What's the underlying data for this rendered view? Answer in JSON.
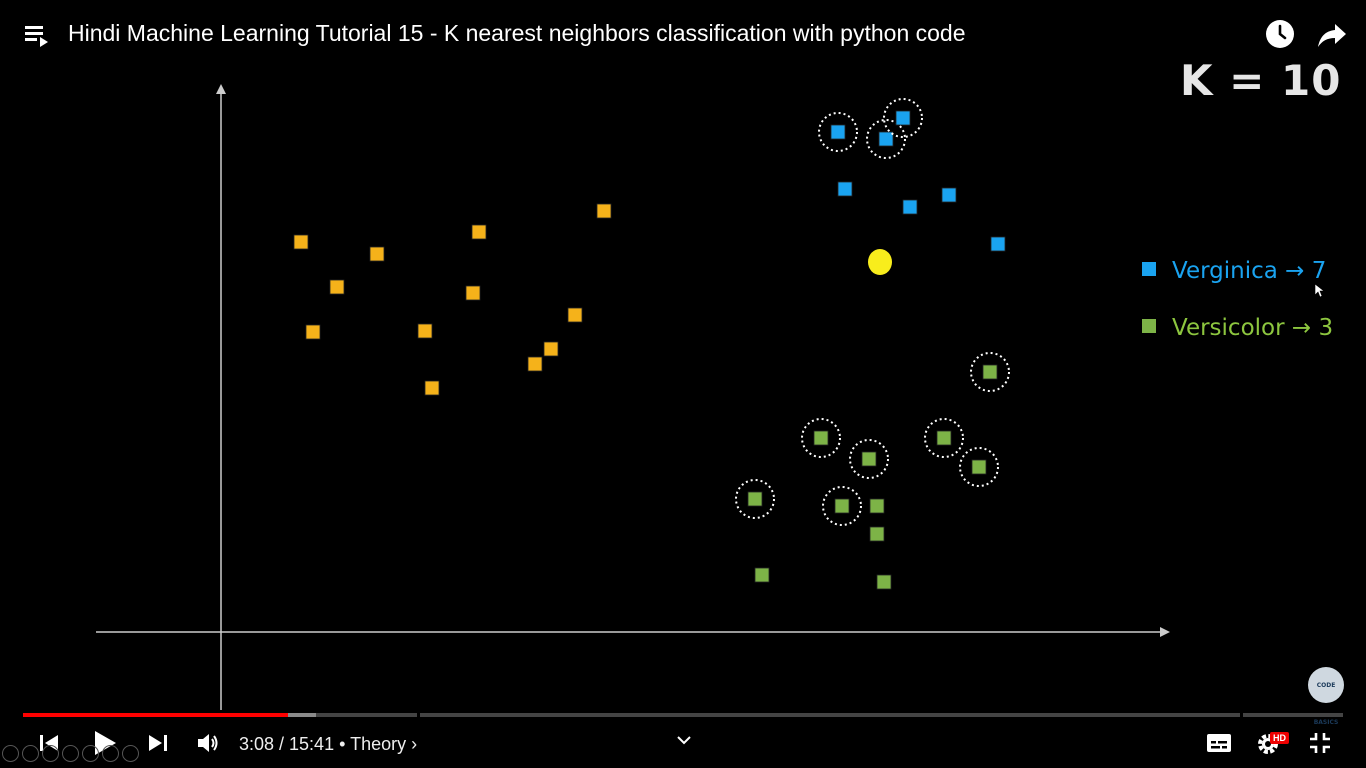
{
  "header": {
    "title": "Hindi Machine Learning Tutorial 15 - K nearest neighbors classification with python code",
    "playlist_icon": "playlist-icon",
    "watch_later_icon": "clock-icon",
    "share_icon": "share-arrow-icon"
  },
  "slide": {
    "k_label": "K = 10",
    "legend": [
      {
        "label": "Verginica → 7",
        "color": "#1aa3f0"
      },
      {
        "label": "Versicolor → 3",
        "color": "#8dc63f"
      }
    ],
    "colors": {
      "setosa": "#f5b21a",
      "verginica": "#1aa3f0",
      "versicolor": "#7db347",
      "query": "#f8ed1c",
      "axis": "#cccccc"
    },
    "watermark": "CODE BASICS"
  },
  "chart_data": {
    "type": "scatter",
    "title": "",
    "xlabel": "",
    "ylabel": "",
    "series": [
      {
        "name": "",
        "color": "#f5b21a",
        "points": [
          [
            80,
            390
          ],
          [
            92,
            300
          ],
          [
            116,
            345
          ],
          [
            156,
            378
          ],
          [
            204,
            301
          ],
          [
            211,
            244
          ],
          [
            252,
            339
          ],
          [
            258,
            400
          ],
          [
            314,
            268
          ],
          [
            330,
            283
          ],
          [
            354,
            317
          ],
          [
            383,
            421
          ]
        ]
      },
      {
        "name": "Verginica",
        "color": "#1aa3f0",
        "points": [
          [
            617,
            500
          ],
          [
            665,
            493
          ],
          [
            682,
            514
          ],
          [
            624,
            443
          ],
          [
            689,
            425
          ],
          [
            728,
            437
          ],
          [
            777,
            388
          ]
        ]
      },
      {
        "name": "Versicolor",
        "color": "#7db347",
        "points": [
          [
            769,
            260
          ],
          [
            723,
            194
          ],
          [
            600,
            194
          ],
          [
            648,
            173
          ],
          [
            758,
            165
          ],
          [
            534,
            133
          ],
          [
            621,
            126
          ],
          [
            656,
            126
          ],
          [
            656,
            98
          ],
          [
            541,
            57
          ],
          [
            663,
            50
          ]
        ]
      },
      {
        "name": "",
        "color": "#f8ed1c",
        "points": [
          [
            659,
            370
          ]
        ]
      }
    ],
    "neighbors_circled": 10
  },
  "player": {
    "time": "3:08 / 15:41",
    "chapter": "• Theory",
    "chapter_chevron": "›",
    "progress_played": 0.2006,
    "progress_buffered": 0.2216,
    "hd_badge": "HD",
    "icons": [
      "previous-icon",
      "play-icon",
      "next-icon",
      "volume-icon",
      "chevron-down-icon",
      "subtitles-icon",
      "settings-icon",
      "exit-fullscreen-icon"
    ]
  }
}
